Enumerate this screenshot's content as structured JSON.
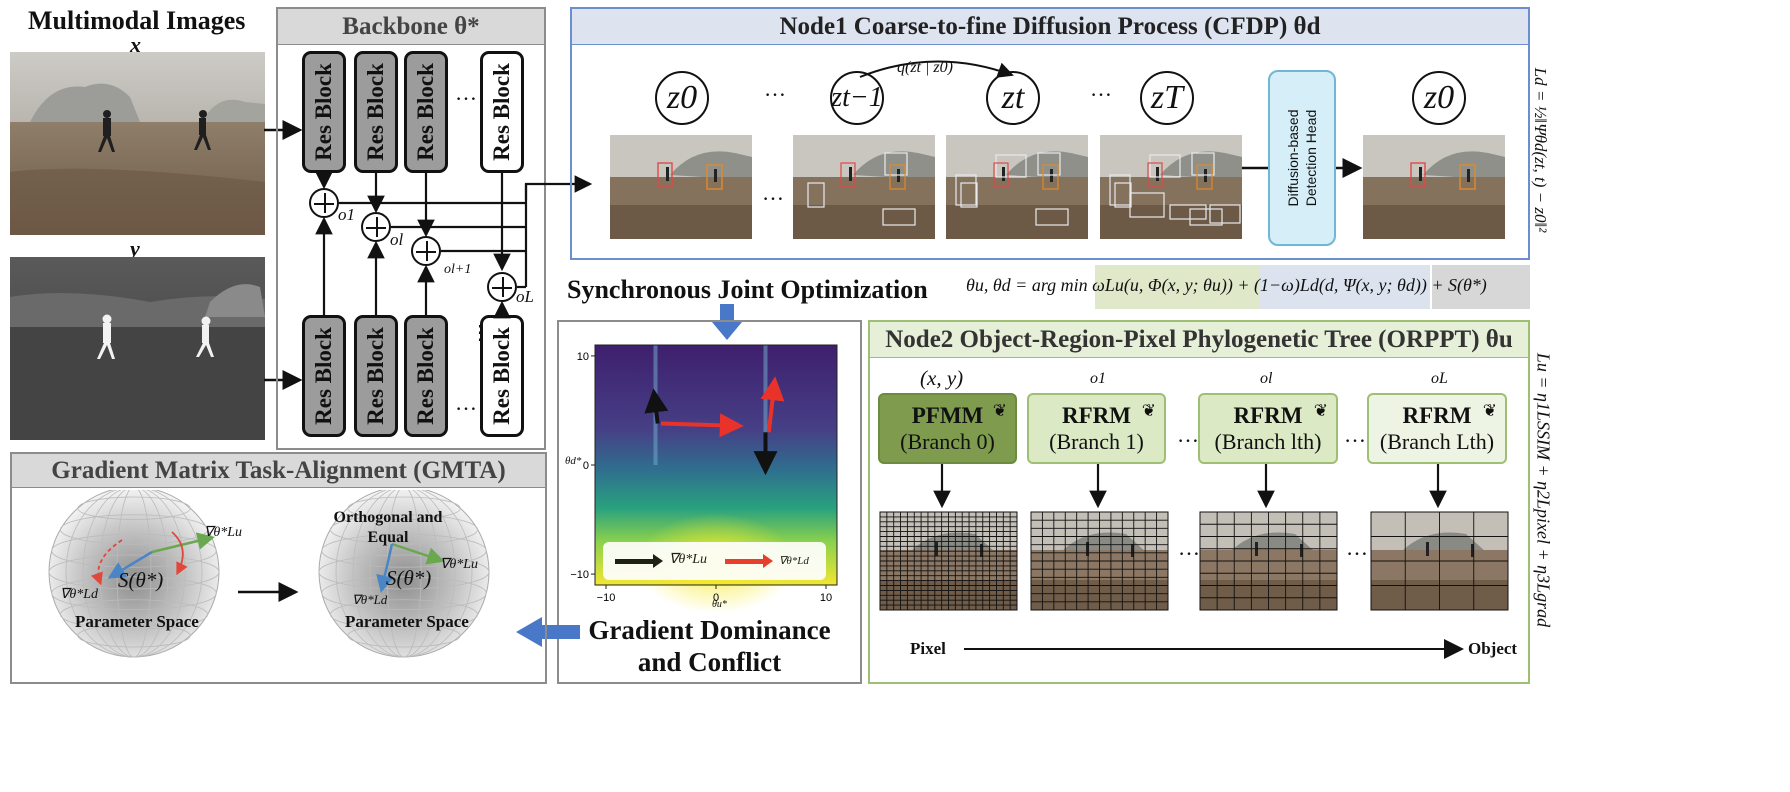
{
  "inputs": {
    "title": "Multimodal Images",
    "x_label": "x",
    "y_label": "y"
  },
  "backbone": {
    "title": "Backbone θ*",
    "block_label": "Res Block",
    "ellipsis": "…",
    "outputs": [
      "o1",
      "ol",
      "ol+1",
      "oL"
    ]
  },
  "cfdp": {
    "title": "Node1 Coarse-to-fine Diffusion Process (CFDP) θd",
    "states": [
      "z0",
      "zt−1",
      "zt",
      "zT",
      "z0"
    ],
    "transition": "q(zt | z0)",
    "head_label_line1": "Diffusion-based",
    "head_label_line2": "Detection Head",
    "loss": "Ld = ½‖Ψθd(zt, t) − z0‖²",
    "ellipsis": "…"
  },
  "sjo": {
    "title": "Synchronous Joint Optimization",
    "equation": "θu, θd = arg min ωLu(u, Φ(x, y; θu)) + (1−ω)Ld(d, Ψ(x, y; θd)) + S(θ*)"
  },
  "gradient_plot": {
    "y_ticks": [
      "10",
      "0",
      "−10"
    ],
    "x_ticks": [
      "−10",
      "0",
      "10"
    ],
    "y_axis_label": "θd*",
    "x_axis_label": "θu*",
    "legend_u": "∇θ*Lu",
    "legend_d": "∇θ*Ld",
    "caption_line1": "Gradient Dominance",
    "caption_line2": "and Conflict",
    "colors": {
      "u_arrow": "#111111",
      "d_arrow": "#e8322a"
    }
  },
  "gmta": {
    "title": "Gradient Matrix Task-Alignment (GMTA)",
    "left": {
      "grad_u": "∇θ*Lu",
      "grad_d": "∇θ*Ld",
      "center": "S(θ*)",
      "space": "Parameter Space"
    },
    "right": {
      "note_line1": "Orthogonal and",
      "note_line2": "Equal",
      "grad_u": "∇θ*Lu",
      "grad_d": "∇θ*Ld",
      "center": "S(θ*)",
      "space": "Parameter Space"
    }
  },
  "orppt": {
    "title": "Node2 Object-Region-Pixel Phylogenetic Tree (ORPPT) θu",
    "branches": [
      {
        "input": "(x, y)",
        "name": "PFMM",
        "sub": "(Branch 0)"
      },
      {
        "input": "o1",
        "name": "RFRM",
        "sub": "(Branch 1)"
      },
      {
        "input": "ol",
        "name": "RFRM",
        "sub": "(Branch lth)"
      },
      {
        "input": "oL",
        "name": "RFRM",
        "sub": "(Branch Lth)"
      }
    ],
    "axis_start": "Pixel",
    "axis_end": "Object",
    "loss": "Lu = η1LSSIM + η2Lpixel + η3Lgrad",
    "ellipsis": "…"
  }
}
